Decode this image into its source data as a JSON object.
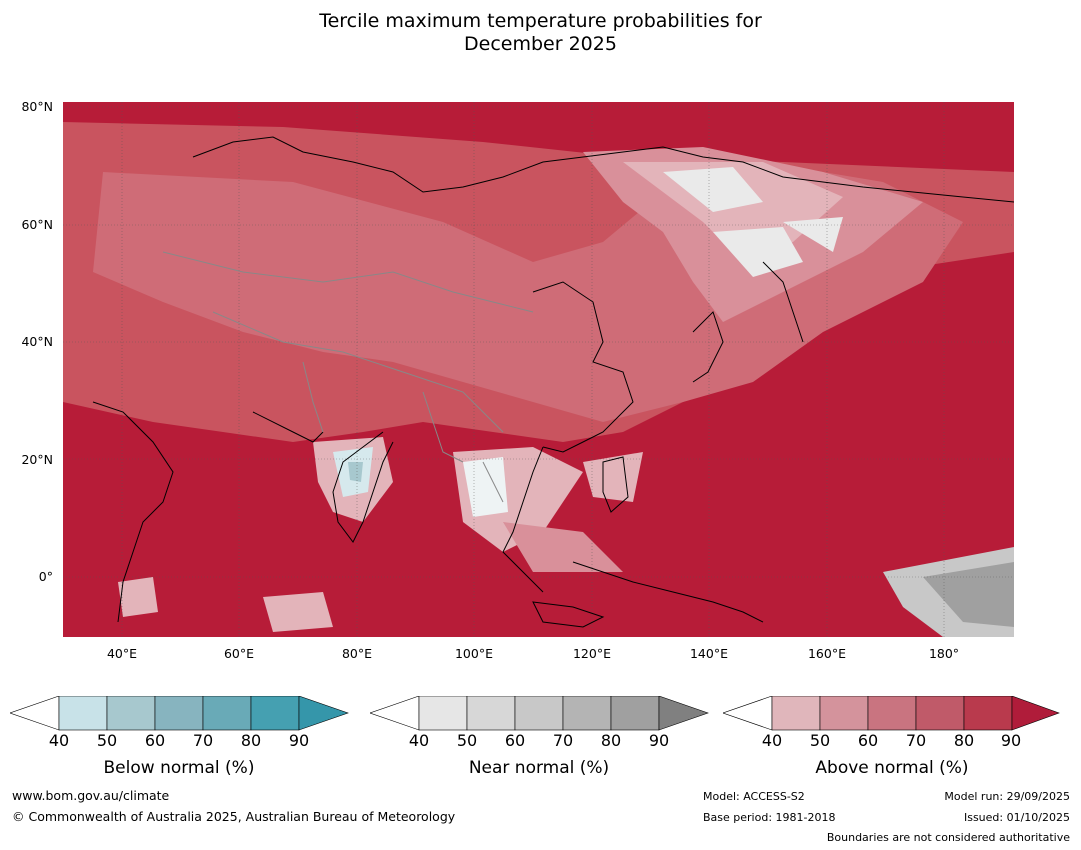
{
  "title": {
    "line1": "Tercile maximum temperature probabilities for",
    "line2": "December 2025"
  },
  "map": {
    "lat_labels": [
      "80°N",
      "60°N",
      "40°N",
      "20°N",
      "0°"
    ],
    "lon_labels": [
      "40°E",
      "60°E",
      "80°E",
      "100°E",
      "120°E",
      "140°E",
      "160°E",
      "180°"
    ]
  },
  "colorbars": [
    {
      "title": "Below normal (%)",
      "ticks": [
        "40",
        "50",
        "60",
        "70",
        "80",
        "90"
      ],
      "colors": [
        "#ffffff",
        "#c8e2e8",
        "#a7c8ce",
        "#87b4bf",
        "#69aab7",
        "#45a0b1",
        "#3596aa"
      ]
    },
    {
      "title": "Near normal (%)",
      "ticks": [
        "40",
        "50",
        "60",
        "70",
        "80",
        "90"
      ],
      "colors": [
        "#ffffff",
        "#e6e6e6",
        "#d7d7d7",
        "#c8c8c8",
        "#b4b4b4",
        "#a0a0a0",
        "#808080"
      ]
    },
    {
      "title": "Above normal (%)",
      "ticks": [
        "40",
        "50",
        "60",
        "70",
        "80",
        "90"
      ],
      "colors": [
        "#ffffff",
        "#e0b6bb",
        "#d4939c",
        "#c97480",
        "#c05a69",
        "#b93a4d",
        "#b01c3a"
      ]
    }
  ],
  "footer": {
    "website": "www.bom.gov.au/climate",
    "copyright": "© Commonwealth of Australia 2025, Australian Bureau of Meteorology",
    "model": "Model: ACCESS-S2",
    "base_period": "Base period: 1981-2018",
    "model_run": "Model run: 29/09/2025",
    "issued": "Issued: 01/10/2025",
    "disclaimer": "Boundaries are not considered authoritative"
  }
}
